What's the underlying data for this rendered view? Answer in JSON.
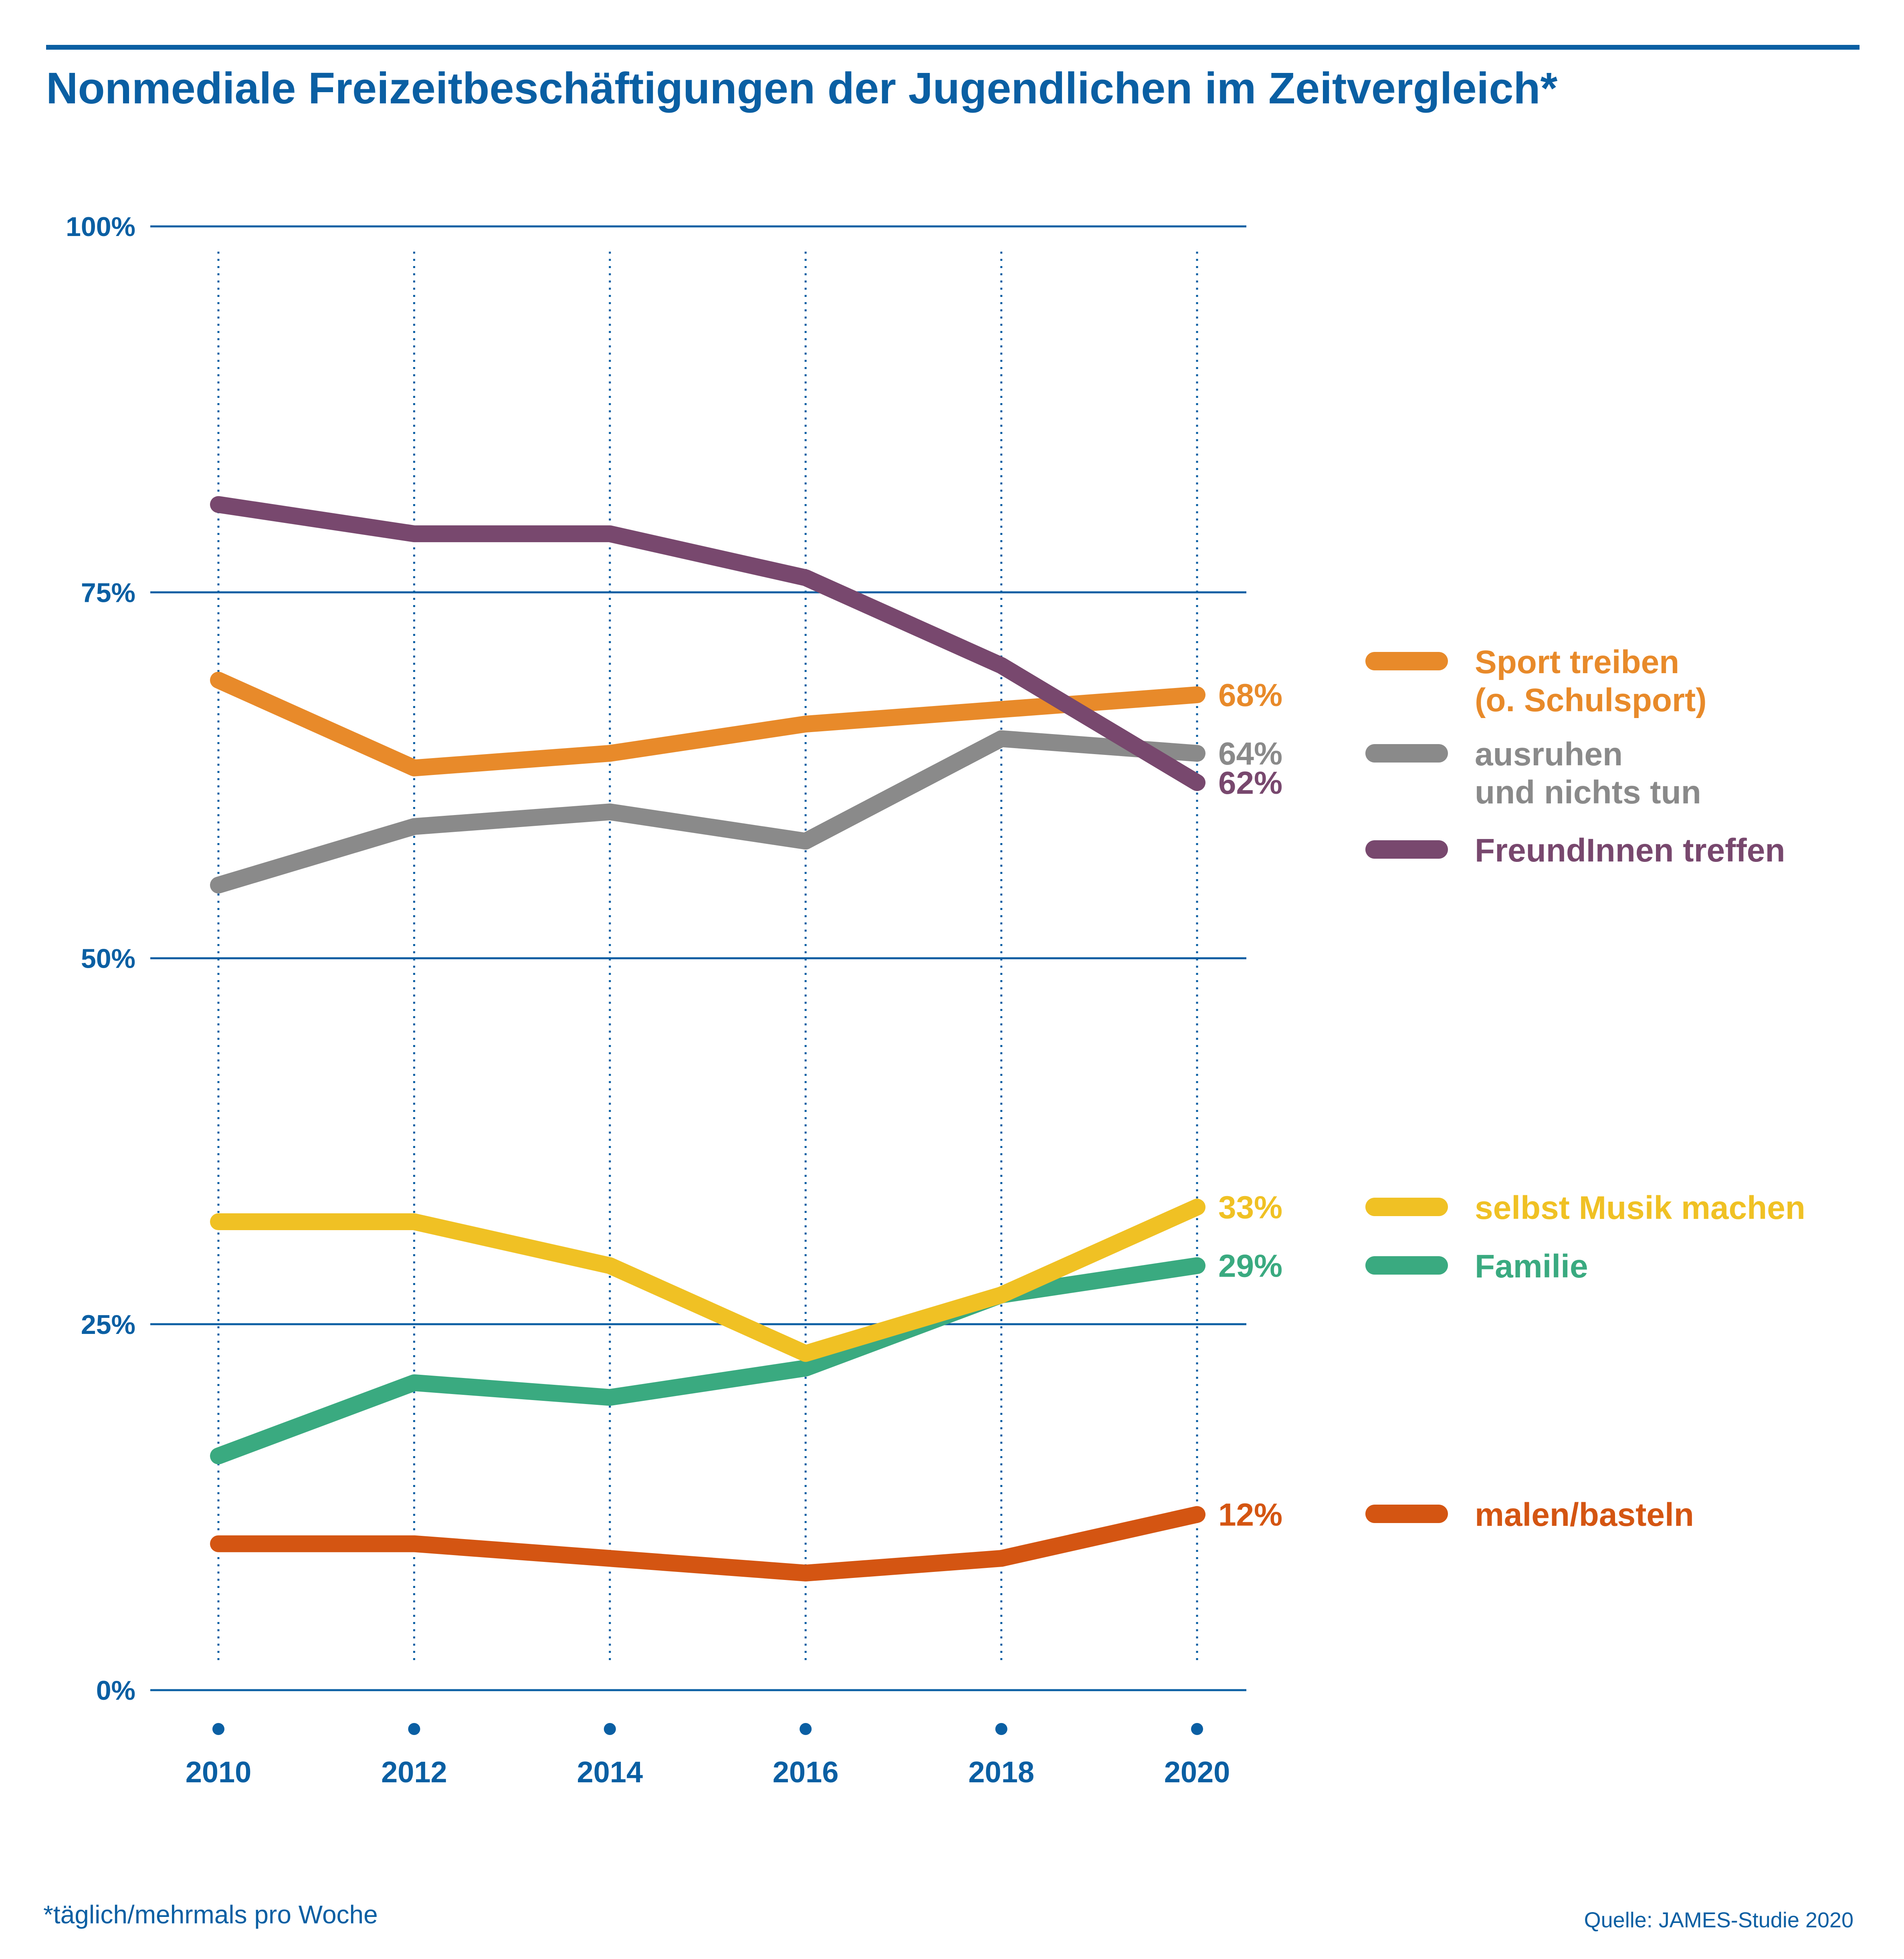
{
  "colors": {
    "accent": "#0a5fa3",
    "sport": "#e88a2a",
    "ausruhen": "#8a8a8a",
    "freunde": "#78486e",
    "musik": "#f0c124",
    "familie": "#3aaa80",
    "malen": "#d45512"
  },
  "chart_data": {
    "type": "line",
    "title": "Nonmediale Freizeitbeschäftigungen der Jugendlichen im Zeitvergleich*",
    "xlabel": "",
    "ylabel": "",
    "ylim": [
      0,
      100
    ],
    "y_ticks": [
      {
        "value": 0,
        "label": "0%"
      },
      {
        "value": 25,
        "label": "25%"
      },
      {
        "value": 50,
        "label": "50%"
      },
      {
        "value": 75,
        "label": "75%"
      },
      {
        "value": 100,
        "label": "100%"
      }
    ],
    "categories": [
      "2010",
      "2012",
      "2014",
      "2016",
      "2018",
      "2020"
    ],
    "series": [
      {
        "key": "freunde",
        "name": "FreundInnen treffen",
        "legend_lines": [
          "FreundInnen treffen"
        ],
        "color": "#78486e",
        "values": [
          81,
          79,
          79,
          76,
          70,
          62
        ],
        "end_label": "62%"
      },
      {
        "key": "sport",
        "name": "Sport treiben (o. Schulsport)",
        "legend_lines": [
          "Sport treiben",
          "(o. Schulsport)"
        ],
        "color": "#e88a2a",
        "values": [
          69,
          63,
          64,
          66,
          67,
          68
        ],
        "end_label": "68%"
      },
      {
        "key": "ausruhen",
        "name": "ausruhen und nichts tun",
        "legend_lines": [
          "ausruhen",
          "und nichts tun"
        ],
        "color": "#8a8a8a",
        "values": [
          55,
          59,
          60,
          58,
          65,
          64
        ],
        "end_label": "64%"
      },
      {
        "key": "musik",
        "name": "selbst Musik machen",
        "legend_lines": [
          "selbst Musik machen"
        ],
        "color": "#f0c124",
        "values": [
          32,
          32,
          29,
          23,
          27,
          33
        ],
        "end_label": "33%"
      },
      {
        "key": "familie",
        "name": "Familie",
        "legend_lines": [
          "Familie"
        ],
        "color": "#3aaa80",
        "values": [
          16,
          21,
          20,
          22,
          27,
          29
        ],
        "end_label": "29%"
      },
      {
        "key": "malen",
        "name": "malen/basteln",
        "legend_lines": [
          "malen/basteln"
        ],
        "color": "#d45512",
        "values": [
          10,
          10,
          9,
          8,
          9,
          12
        ],
        "end_label": "12%"
      }
    ],
    "legend_position": "right",
    "grid": true
  },
  "footnote": "*täglich/mehrmals pro Woche",
  "source": "Quelle: JAMES-Studie 2020"
}
